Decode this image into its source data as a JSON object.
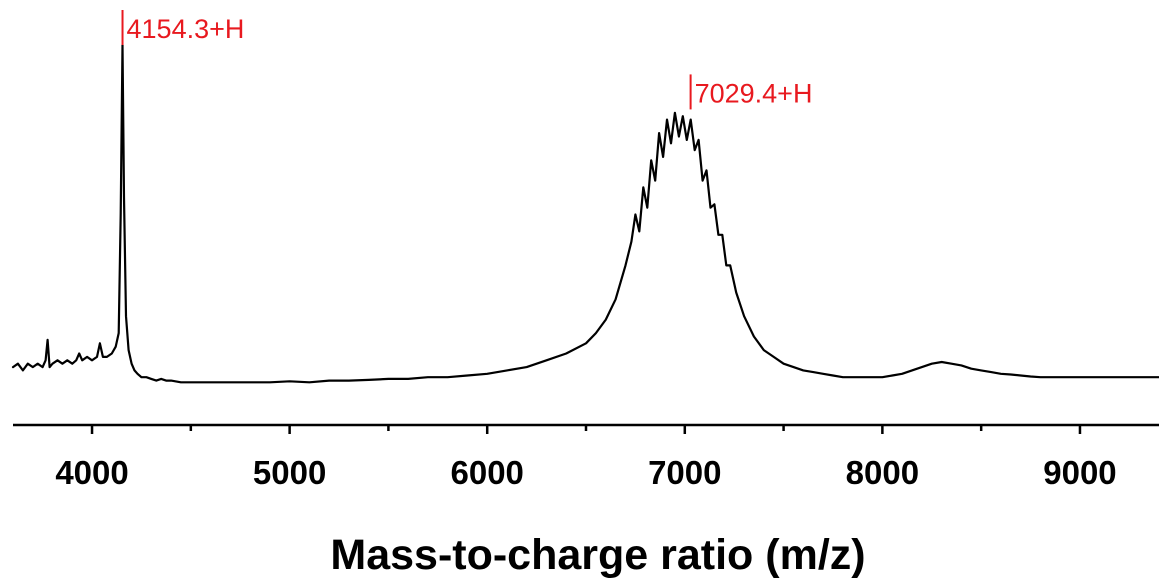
{
  "chart_data": {
    "type": "line",
    "xlabel": "Mass-to-charge ratio (m/z)",
    "ylabel": "",
    "xlim": [
      3600,
      9400
    ],
    "ylim": [
      0,
      1
    ],
    "x_ticks": [
      4000,
      5000,
      6000,
      7000,
      8000,
      9000
    ],
    "x_minor_ticks": [
      4500,
      5500,
      6500,
      7500,
      8500
    ],
    "grid": false,
    "y_axis_shown": false,
    "colors": {
      "trace": "#000000",
      "annotation": "#e8191f",
      "axis": "#000000"
    },
    "annotations": [
      {
        "x": 4154.3,
        "y": 1.0,
        "label": "4154.3+H"
      },
      {
        "x": 7029.4,
        "y": 0.81,
        "label": "7029.4+H"
      }
    ],
    "series": [
      {
        "points": [
          [
            3600,
            0.05
          ],
          [
            3625,
            0.06
          ],
          [
            3650,
            0.04
          ],
          [
            3675,
            0.06
          ],
          [
            3700,
            0.05
          ],
          [
            3725,
            0.06
          ],
          [
            3750,
            0.05
          ],
          [
            3765,
            0.07
          ],
          [
            3775,
            0.13
          ],
          [
            3785,
            0.05
          ],
          [
            3800,
            0.06
          ],
          [
            3825,
            0.07
          ],
          [
            3850,
            0.06
          ],
          [
            3875,
            0.07
          ],
          [
            3900,
            0.06
          ],
          [
            3920,
            0.07
          ],
          [
            3935,
            0.09
          ],
          [
            3950,
            0.07
          ],
          [
            3975,
            0.08
          ],
          [
            4000,
            0.07
          ],
          [
            4025,
            0.08
          ],
          [
            4040,
            0.12
          ],
          [
            4055,
            0.08
          ],
          [
            4075,
            0.08
          ],
          [
            4100,
            0.09
          ],
          [
            4120,
            0.11
          ],
          [
            4135,
            0.15
          ],
          [
            4145,
            0.5
          ],
          [
            4154,
            1.0
          ],
          [
            4162,
            0.55
          ],
          [
            4172,
            0.2
          ],
          [
            4185,
            0.1
          ],
          [
            4200,
            0.06
          ],
          [
            4215,
            0.04
          ],
          [
            4230,
            0.03
          ],
          [
            4250,
            0.02
          ],
          [
            4275,
            0.02
          ],
          [
            4300,
            0.015
          ],
          [
            4325,
            0.01
          ],
          [
            4350,
            0.015
          ],
          [
            4375,
            0.01
          ],
          [
            4400,
            0.01
          ],
          [
            4450,
            0.005
          ],
          [
            4500,
            0.005
          ],
          [
            4600,
            0.005
          ],
          [
            4700,
            0.005
          ],
          [
            4800,
            0.005
          ],
          [
            4900,
            0.005
          ],
          [
            5000,
            0.008
          ],
          [
            5100,
            0.005
          ],
          [
            5200,
            0.01
          ],
          [
            5300,
            0.01
          ],
          [
            5400,
            0.012
          ],
          [
            5500,
            0.015
          ],
          [
            5600,
            0.015
          ],
          [
            5700,
            0.02
          ],
          [
            5800,
            0.02
          ],
          [
            5900,
            0.025
          ],
          [
            6000,
            0.03
          ],
          [
            6100,
            0.04
          ],
          [
            6200,
            0.05
          ],
          [
            6300,
            0.07
          ],
          [
            6400,
            0.09
          ],
          [
            6500,
            0.12
          ],
          [
            6550,
            0.15
          ],
          [
            6600,
            0.19
          ],
          [
            6650,
            0.25
          ],
          [
            6700,
            0.35
          ],
          [
            6730,
            0.42
          ],
          [
            6750,
            0.5
          ],
          [
            6770,
            0.45
          ],
          [
            6790,
            0.58
          ],
          [
            6810,
            0.52
          ],
          [
            6830,
            0.66
          ],
          [
            6850,
            0.6
          ],
          [
            6870,
            0.74
          ],
          [
            6890,
            0.67
          ],
          [
            6910,
            0.78
          ],
          [
            6930,
            0.71
          ],
          [
            6950,
            0.8
          ],
          [
            6970,
            0.73
          ],
          [
            6990,
            0.79
          ],
          [
            7010,
            0.72
          ],
          [
            7030,
            0.78
          ],
          [
            7050,
            0.69
          ],
          [
            7070,
            0.72
          ],
          [
            7090,
            0.6
          ],
          [
            7110,
            0.63
          ],
          [
            7130,
            0.52
          ],
          [
            7150,
            0.53
          ],
          [
            7170,
            0.44
          ],
          [
            7190,
            0.44
          ],
          [
            7210,
            0.35
          ],
          [
            7230,
            0.35
          ],
          [
            7260,
            0.27
          ],
          [
            7300,
            0.2
          ],
          [
            7350,
            0.14
          ],
          [
            7400,
            0.1
          ],
          [
            7450,
            0.08
          ],
          [
            7500,
            0.06
          ],
          [
            7550,
            0.05
          ],
          [
            7600,
            0.04
          ],
          [
            7650,
            0.035
          ],
          [
            7700,
            0.03
          ],
          [
            7750,
            0.025
          ],
          [
            7800,
            0.02
          ],
          [
            7850,
            0.02
          ],
          [
            7900,
            0.02
          ],
          [
            7950,
            0.02
          ],
          [
            8000,
            0.02
          ],
          [
            8050,
            0.025
          ],
          [
            8100,
            0.03
          ],
          [
            8150,
            0.04
          ],
          [
            8200,
            0.05
          ],
          [
            8250,
            0.06
          ],
          [
            8300,
            0.065
          ],
          [
            8350,
            0.06
          ],
          [
            8400,
            0.055
          ],
          [
            8450,
            0.045
          ],
          [
            8500,
            0.04
          ],
          [
            8550,
            0.035
          ],
          [
            8600,
            0.03
          ],
          [
            8650,
            0.028
          ],
          [
            8700,
            0.025
          ],
          [
            8750,
            0.022
          ],
          [
            8800,
            0.02
          ],
          [
            8850,
            0.02
          ],
          [
            8900,
            0.02
          ],
          [
            8950,
            0.02
          ],
          [
            9000,
            0.02
          ],
          [
            9050,
            0.02
          ],
          [
            9100,
            0.02
          ],
          [
            9150,
            0.02
          ],
          [
            9200,
            0.02
          ],
          [
            9250,
            0.02
          ],
          [
            9300,
            0.02
          ],
          [
            9350,
            0.02
          ],
          [
            9400,
            0.02
          ]
        ]
      }
    ]
  }
}
